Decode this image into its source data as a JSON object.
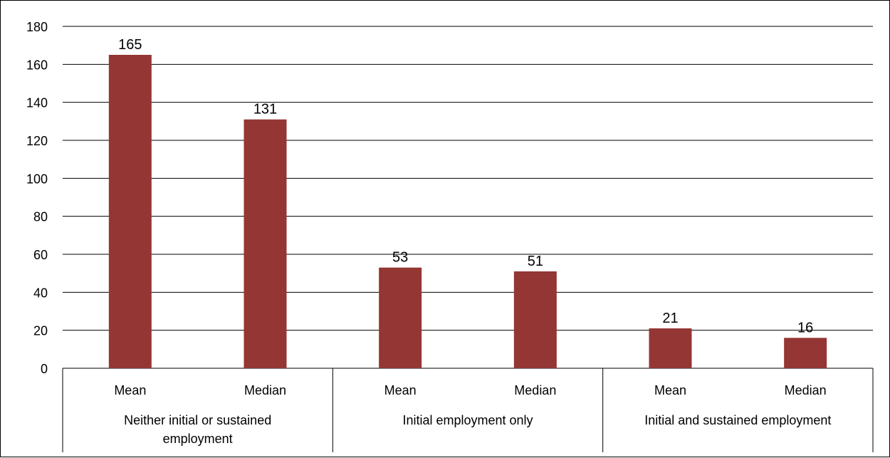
{
  "chart_data": {
    "type": "bar",
    "title": "",
    "xlabel": "",
    "ylabel": "",
    "ylim": [
      0,
      180
    ],
    "yticks": [
      0,
      20,
      40,
      60,
      80,
      100,
      120,
      140,
      160,
      180
    ],
    "grid": true,
    "legend": "none",
    "bar_color": "#943634",
    "groups": [
      {
        "label": "Neither initial or sustained employment",
        "bars": [
          {
            "category": "Mean",
            "value": 165
          },
          {
            "category": "Median",
            "value": 131
          }
        ]
      },
      {
        "label": "Initial employment only",
        "bars": [
          {
            "category": "Mean",
            "value": 53
          },
          {
            "category": "Median",
            "value": 51
          }
        ]
      },
      {
        "label": "Initial and sustained employment",
        "bars": [
          {
            "category": "Mean",
            "value": 21
          },
          {
            "category": "Median",
            "value": 16
          }
        ]
      }
    ]
  }
}
